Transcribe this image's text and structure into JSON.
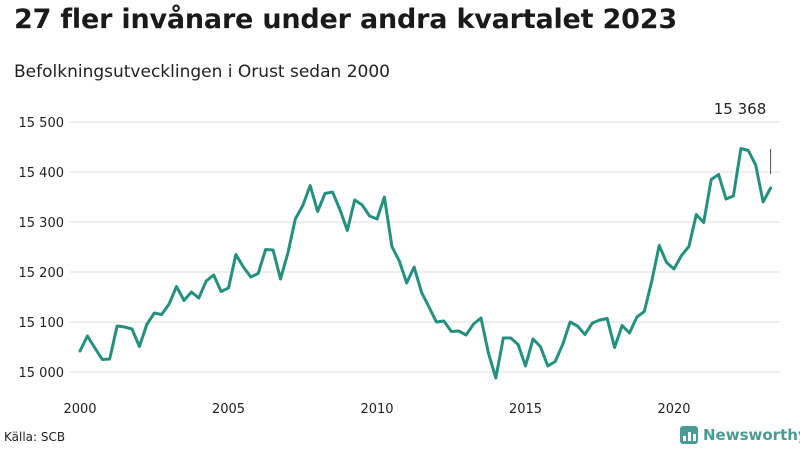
{
  "header": {
    "title": "27 fler invånare under andra kvartalet 2023",
    "subtitle": "Befolkningsutvecklingen i Orust sedan 2000"
  },
  "footer": {
    "source": "Källa: SCB",
    "brand": "Newsworthy"
  },
  "colors": {
    "line": "#24917f",
    "grid": "#dddddd",
    "brand": "#4a9b94"
  },
  "chart_data": {
    "type": "line",
    "title": "27 fler invånare under andra kvartalet 2023",
    "subtitle": "Befolkningsutvecklingen i Orust sedan 2000",
    "xlabel": "",
    "ylabel": "",
    "xlim": [
      2000,
      2023.5
    ],
    "ylim": [
      14985,
      15500
    ],
    "grid": true,
    "x_ticks": [
      2000,
      2005,
      2010,
      2015,
      2020
    ],
    "x_tick_labels": [
      "2000",
      "2005",
      "2010",
      "2015",
      "2020"
    ],
    "y_ticks": [
      15000,
      15100,
      15200,
      15300,
      15400,
      15500
    ],
    "y_tick_labels": [
      "15 000",
      "15 100",
      "15 200",
      "15 300",
      "15 400",
      "15 500"
    ],
    "last_value_label": "15 368",
    "series": [
      {
        "x": [
          2000.0,
          2000.25,
          2000.5,
          2000.75,
          2001.0,
          2001.25,
          2001.5,
          2001.75,
          2002.0,
          2002.25,
          2002.5,
          2002.75,
          2003.0,
          2003.25,
          2003.5,
          2003.75,
          2004.0,
          2004.25,
          2004.5,
          2004.75,
          2005.0,
          2005.25,
          2005.5,
          2005.75,
          2006.0,
          2006.25,
          2006.5,
          2006.75,
          2007.0,
          2007.25,
          2007.5,
          2007.75,
          2008.0,
          2008.25,
          2008.5,
          2008.75,
          2009.0,
          2009.25,
          2009.5,
          2009.75,
          2010.0,
          2010.25,
          2010.5,
          2010.75,
          2011.0,
          2011.25,
          2011.5,
          2011.75,
          2012.0,
          2012.25,
          2012.5,
          2012.75,
          2013.0,
          2013.25,
          2013.5,
          2013.75,
          2014.0,
          2014.25,
          2014.5,
          2014.75,
          2015.0,
          2015.25,
          2015.5,
          2015.75,
          2016.0,
          2016.25,
          2016.5,
          2016.75,
          2017.0,
          2017.25,
          2017.5,
          2017.75,
          2018.0,
          2018.25,
          2018.5,
          2018.75,
          2019.0,
          2019.25,
          2019.5,
          2019.75,
          2020.0,
          2020.25,
          2020.5,
          2020.75,
          2021.0,
          2021.25,
          2021.5,
          2021.75,
          2022.0,
          2022.25,
          2022.5,
          2022.75,
          2023.0,
          2023.25
        ],
        "values": [
          15042,
          15072,
          15048,
          15025,
          15026,
          15092,
          15090,
          15086,
          15051,
          15095,
          15118,
          15115,
          15136,
          15171,
          15143,
          15160,
          15148,
          15182,
          15194,
          15161,
          15168,
          15235,
          15210,
          15190,
          15197,
          15245,
          15244,
          15186,
          15238,
          15306,
          15333,
          15373,
          15321,
          15357,
          15360,
          15325,
          15283,
          15344,
          15334,
          15312,
          15306,
          15350,
          15251,
          15222,
          15178,
          15210,
          15159,
          15130,
          15100,
          15102,
          15081,
          15082,
          15074,
          15096,
          15108,
          15038,
          14988,
          15068,
          15068,
          15055,
          15012,
          15066,
          15051,
          15012,
          15021,
          15055,
          15100,
          15092,
          15075,
          15098,
          15104,
          15107,
          15049,
          15093,
          15078,
          15110,
          15121,
          15182,
          15253,
          15219,
          15206,
          15233,
          15251,
          15315,
          15299,
          15385,
          15395,
          15346,
          15352,
          15447,
          15443,
          15414,
          15340,
          15368
        ]
      }
    ]
  }
}
